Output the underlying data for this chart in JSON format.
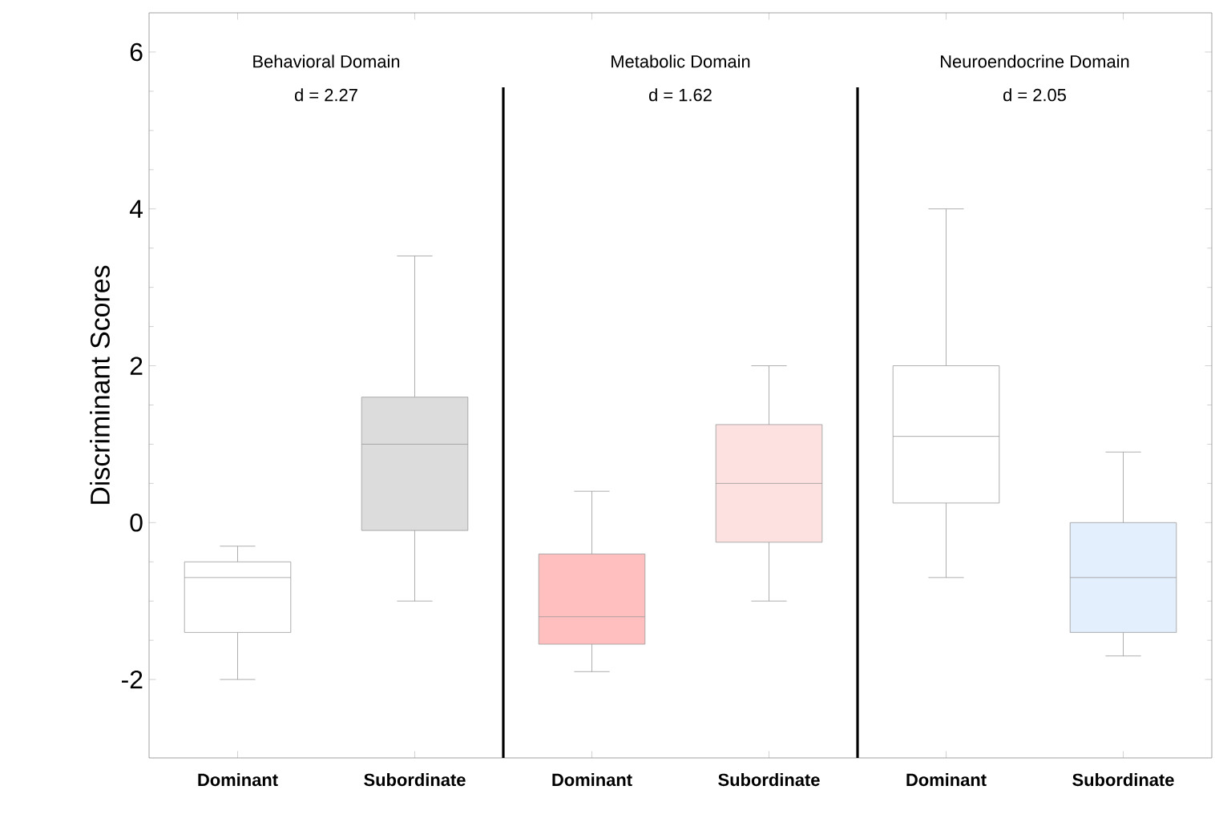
{
  "chart_data": {
    "type": "box",
    "ylabel": "Discriminant Scores",
    "categories": [
      "Dominant",
      "Subordinate",
      "Dominant",
      "Subordinate",
      "Dominant",
      "Subordinate"
    ],
    "boxes": [
      {
        "low": -2.0,
        "q1": -1.4,
        "median": -0.7,
        "q3": -0.5,
        "high": -0.3
      },
      {
        "low": -1.0,
        "q1": -0.1,
        "median": 1.0,
        "q3": 1.6,
        "high": 3.4
      },
      {
        "low": -1.9,
        "q1": -1.55,
        "median": -1.2,
        "q3": -0.4,
        "high": 0.4
      },
      {
        "low": -1.0,
        "q1": -0.25,
        "median": 0.5,
        "q3": 1.25,
        "high": 2.0
      },
      {
        "low": -0.7,
        "q1": 0.25,
        "median": 1.1,
        "q3": 2.0,
        "high": 4.0
      },
      {
        "low": -1.7,
        "q1": -1.4,
        "median": -0.7,
        "q3": 0.0,
        "high": 0.9
      }
    ],
    "colors": [
      "#ffffff",
      "#dcdcdc",
      "#ffbfbf",
      "#fde0e0",
      "#ffffff",
      "#e3effc"
    ],
    "ylim": [
      -3,
      6.5
    ],
    "yticks": [
      -2,
      0,
      2,
      4,
      6
    ],
    "annotations": [
      "Behavioral Domain",
      "d = 2.27",
      "Metabolic Domain",
      "d = 1.62",
      "Neuroendocrine Domain",
      "d = 2.05"
    ]
  }
}
